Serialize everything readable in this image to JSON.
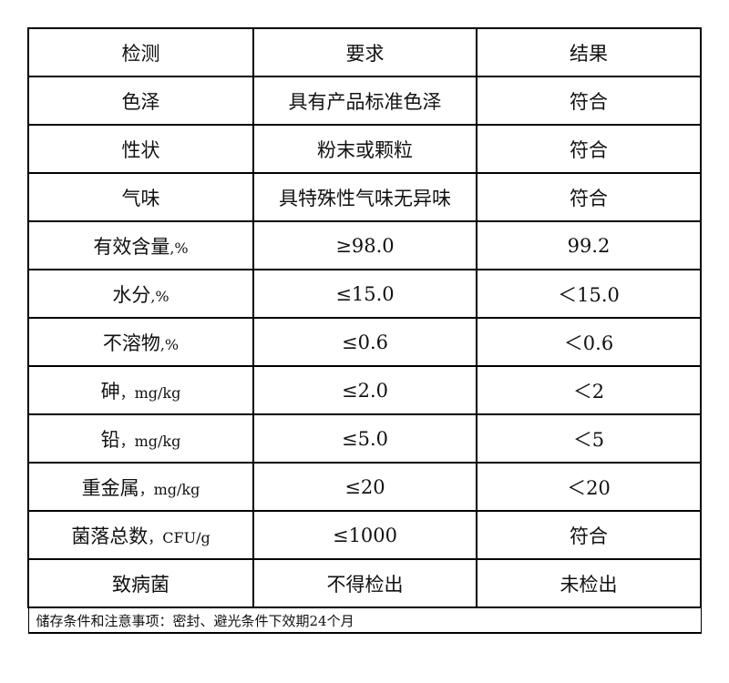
{
  "header": [
    "检测",
    "要求",
    "结果"
  ],
  "rows": [
    {
      "item": "色泽",
      "unit": "",
      "req": "具有产品标准色泽",
      "res": "符合"
    },
    {
      "item": "性状",
      "unit": "",
      "req": "粉末或颗粒",
      "res": "符合"
    },
    {
      "item": "气味",
      "unit": "",
      "req": "具特殊性气味无异味",
      "res": "符合"
    },
    {
      "item": "有效含量",
      "unit": ",%",
      "req": "≥98.0",
      "res": "99.2"
    },
    {
      "item": "水分",
      "unit": ",%",
      "req": "≤15.0",
      "res": "＜15.0"
    },
    {
      "item": "不溶物",
      "unit": ",%",
      "req": "≤0.6",
      "res": "＜0.6"
    },
    {
      "item": "砷",
      "unit": "，mg/kg",
      "req": "≤2.0",
      "res": "＜2"
    },
    {
      "item": "铅",
      "unit": "，mg/kg",
      "req": "≤5.0",
      "res": "＜5"
    },
    {
      "item": "重金属",
      "unit": "，mg/kg",
      "req": "≤20",
      "res": "＜20"
    },
    {
      "item": "菌落总数",
      "unit": "，CFU/g",
      "req": "≤1000",
      "res": "符合"
    },
    {
      "item": "致病菌",
      "unit": "",
      "req": "不得检出",
      "res": "未检出"
    }
  ],
  "footer": "储存条件和注意事项：密封、避光条件下效期24个月"
}
